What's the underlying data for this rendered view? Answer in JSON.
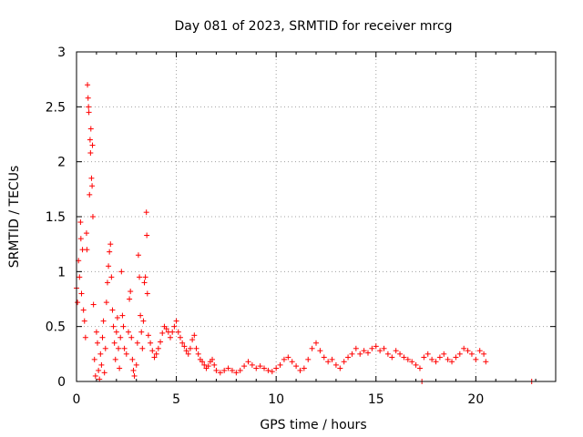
{
  "chart_data": {
    "type": "scatter",
    "title": "Day 081 of 2023, SRMTID for receiver mrcg",
    "xlabel": "GPS time / hours",
    "ylabel": "SRMTID / TECUs",
    "xlim": [
      0,
      24
    ],
    "ylim": [
      0,
      3
    ],
    "x_ticks": [
      0,
      5,
      10,
      15,
      20
    ],
    "y_ticks": [
      0,
      0.5,
      1,
      1.5,
      2,
      2.5,
      3
    ],
    "x_tick_labels": [
      "0",
      "5",
      "10",
      "15",
      "20"
    ],
    "y_tick_labels": [
      "0",
      "0.5",
      "1",
      "1.5",
      "2",
      "2.5",
      "3"
    ],
    "grid": true,
    "marker": "+",
    "color": "#ff0000",
    "series": [
      {
        "name": "mrcg",
        "points": [
          [
            0.0,
            0.85
          ],
          [
            0.05,
            0.72
          ],
          [
            0.1,
            1.1
          ],
          [
            0.15,
            0.95
          ],
          [
            0.2,
            1.45
          ],
          [
            0.22,
            1.3
          ],
          [
            0.25,
            0.8
          ],
          [
            0.3,
            1.2
          ],
          [
            0.35,
            0.65
          ],
          [
            0.4,
            0.55
          ],
          [
            0.45,
            0.4
          ],
          [
            0.5,
            1.35
          ],
          [
            0.52,
            1.2
          ],
          [
            0.55,
            2.7
          ],
          [
            0.58,
            2.58
          ],
          [
            0.6,
            2.5
          ],
          [
            0.62,
            2.45
          ],
          [
            0.65,
            1.7
          ],
          [
            0.68,
            2.2
          ],
          [
            0.7,
            2.08
          ],
          [
            0.72,
            2.3
          ],
          [
            0.75,
            1.85
          ],
          [
            0.78,
            1.78
          ],
          [
            0.8,
            2.15
          ],
          [
            0.82,
            1.5
          ],
          [
            0.85,
            0.7
          ],
          [
            0.9,
            0.2
          ],
          [
            0.95,
            0.05
          ],
          [
            1.0,
            0.45
          ],
          [
            1.05,
            0.35
          ],
          [
            1.1,
            0.1
          ],
          [
            1.15,
            0.02
          ],
          [
            1.2,
            0.25
          ],
          [
            1.25,
            0.15
          ],
          [
            1.3,
            0.4
          ],
          [
            1.35,
            0.55
          ],
          [
            1.4,
            0.08
          ],
          [
            1.45,
            0.3
          ],
          [
            1.5,
            0.72
          ],
          [
            1.55,
            0.9
          ],
          [
            1.6,
            1.05
          ],
          [
            1.65,
            1.18
          ],
          [
            1.7,
            1.25
          ],
          [
            1.75,
            0.95
          ],
          [
            1.8,
            0.65
          ],
          [
            1.85,
            0.5
          ],
          [
            1.9,
            0.35
          ],
          [
            1.95,
            0.2
          ],
          [
            2.0,
            0.45
          ],
          [
            2.05,
            0.58
          ],
          [
            2.1,
            0.3
          ],
          [
            2.15,
            0.12
          ],
          [
            2.2,
            0.4
          ],
          [
            2.25,
            1.0
          ],
          [
            2.3,
            0.6
          ],
          [
            2.35,
            0.5
          ],
          [
            2.4,
            0.3
          ],
          [
            2.5,
            0.25
          ],
          [
            2.6,
            0.45
          ],
          [
            2.65,
            0.75
          ],
          [
            2.7,
            0.82
          ],
          [
            2.75,
            0.4
          ],
          [
            2.8,
            0.2
          ],
          [
            2.85,
            0.1
          ],
          [
            2.9,
            0.05
          ],
          [
            3.0,
            0.15
          ],
          [
            3.05,
            0.35
          ],
          [
            3.1,
            1.15
          ],
          [
            3.15,
            0.95
          ],
          [
            3.2,
            0.6
          ],
          [
            3.25,
            0.45
          ],
          [
            3.3,
            0.3
          ],
          [
            3.35,
            0.55
          ],
          [
            3.4,
            0.9
          ],
          [
            3.45,
            0.95
          ],
          [
            3.5,
            1.54
          ],
          [
            3.52,
            1.33
          ],
          [
            3.55,
            0.8
          ],
          [
            3.6,
            0.42
          ],
          [
            3.7,
            0.35
          ],
          [
            3.8,
            0.28
          ],
          [
            3.9,
            0.22
          ],
          [
            4.0,
            0.25
          ],
          [
            4.1,
            0.3
          ],
          [
            4.2,
            0.36
          ],
          [
            4.3,
            0.44
          ],
          [
            4.4,
            0.5
          ],
          [
            4.5,
            0.48
          ],
          [
            4.6,
            0.45
          ],
          [
            4.7,
            0.4
          ],
          [
            4.8,
            0.45
          ],
          [
            4.9,
            0.5
          ],
          [
            5.0,
            0.55
          ],
          [
            5.1,
            0.45
          ],
          [
            5.2,
            0.4
          ],
          [
            5.3,
            0.35
          ],
          [
            5.4,
            0.32
          ],
          [
            5.5,
            0.28
          ],
          [
            5.6,
            0.25
          ],
          [
            5.7,
            0.3
          ],
          [
            5.8,
            0.38
          ],
          [
            5.9,
            0.42
          ],
          [
            6.0,
            0.3
          ],
          [
            6.1,
            0.25
          ],
          [
            6.2,
            0.2
          ],
          [
            6.3,
            0.18
          ],
          [
            6.4,
            0.15
          ],
          [
            6.5,
            0.12
          ],
          [
            6.6,
            0.14
          ],
          [
            6.7,
            0.18
          ],
          [
            6.8,
            0.2
          ],
          [
            6.9,
            0.15
          ],
          [
            7.0,
            0.1
          ],
          [
            7.2,
            0.08
          ],
          [
            7.4,
            0.1
          ],
          [
            7.6,
            0.12
          ],
          [
            7.8,
            0.1
          ],
          [
            8.0,
            0.08
          ],
          [
            8.2,
            0.1
          ],
          [
            8.4,
            0.14
          ],
          [
            8.6,
            0.18
          ],
          [
            8.8,
            0.15
          ],
          [
            9.0,
            0.12
          ],
          [
            9.2,
            0.14
          ],
          [
            9.4,
            0.12
          ],
          [
            9.6,
            0.1
          ],
          [
            9.8,
            0.09
          ],
          [
            10.0,
            0.12
          ],
          [
            10.2,
            0.15
          ],
          [
            10.4,
            0.2
          ],
          [
            10.6,
            0.22
          ],
          [
            10.8,
            0.18
          ],
          [
            11.0,
            0.14
          ],
          [
            11.2,
            0.1
          ],
          [
            11.4,
            0.12
          ],
          [
            11.6,
            0.2
          ],
          [
            11.8,
            0.3
          ],
          [
            12.0,
            0.35
          ],
          [
            12.2,
            0.28
          ],
          [
            12.4,
            0.22
          ],
          [
            12.6,
            0.18
          ],
          [
            12.8,
            0.2
          ],
          [
            13.0,
            0.15
          ],
          [
            13.2,
            0.12
          ],
          [
            13.4,
            0.18
          ],
          [
            13.6,
            0.22
          ],
          [
            13.8,
            0.25
          ],
          [
            14.0,
            0.3
          ],
          [
            14.2,
            0.25
          ],
          [
            14.4,
            0.28
          ],
          [
            14.6,
            0.26
          ],
          [
            14.8,
            0.3
          ],
          [
            15.0,
            0.32
          ],
          [
            15.2,
            0.28
          ],
          [
            15.4,
            0.3
          ],
          [
            15.6,
            0.25
          ],
          [
            15.8,
            0.22
          ],
          [
            16.0,
            0.28
          ],
          [
            16.2,
            0.25
          ],
          [
            16.4,
            0.22
          ],
          [
            16.6,
            0.2
          ],
          [
            16.8,
            0.18
          ],
          [
            17.0,
            0.15
          ],
          [
            17.2,
            0.12
          ],
          [
            17.3,
            0.0
          ],
          [
            17.4,
            0.22
          ],
          [
            17.6,
            0.25
          ],
          [
            17.8,
            0.2
          ],
          [
            18.0,
            0.18
          ],
          [
            18.2,
            0.22
          ],
          [
            18.4,
            0.25
          ],
          [
            18.6,
            0.2
          ],
          [
            18.8,
            0.18
          ],
          [
            19.0,
            0.22
          ],
          [
            19.2,
            0.25
          ],
          [
            19.4,
            0.3
          ],
          [
            19.6,
            0.28
          ],
          [
            19.8,
            0.25
          ],
          [
            20.0,
            0.2
          ],
          [
            20.2,
            0.28
          ],
          [
            20.4,
            0.25
          ],
          [
            20.5,
            0.18
          ],
          [
            22.8,
            0.0
          ]
        ]
      }
    ]
  }
}
